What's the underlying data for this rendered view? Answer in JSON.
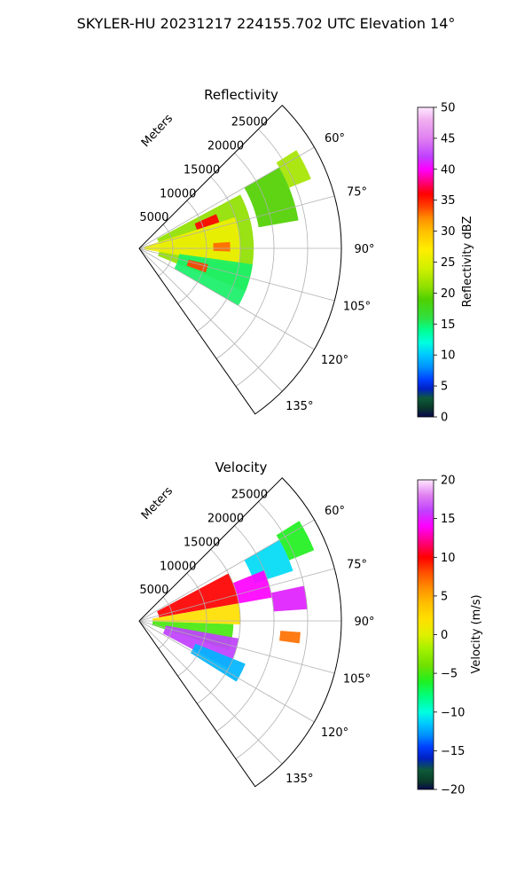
{
  "figure": {
    "suptitle": "SKYLER-HU  20231217  224155.702 UTC Elevation 14°"
  },
  "chart_data": [
    {
      "type": "polar-ppi",
      "title": "Reflectivity",
      "r_label": "Meters",
      "r_ticks": [
        5000,
        10000,
        15000,
        20000,
        25000
      ],
      "r_tick_labels": [
        "5000",
        "10000",
        "15000",
        "20000",
        "25000"
      ],
      "r_max": 30000,
      "theta_min_deg": 45,
      "theta_max_deg": 145,
      "theta_ticks": [
        60,
        75,
        90,
        105,
        120,
        135
      ],
      "theta_tick_labels": [
        "60°",
        "75°",
        "90°",
        "105°",
        "120°",
        "135°"
      ],
      "grid": true,
      "colorbar": {
        "label": "Reflectivity dBZ",
        "min": 0,
        "max": 50,
        "ticks": [
          0,
          5,
          10,
          15,
          20,
          25,
          30,
          35,
          40,
          45,
          50
        ],
        "tick_labels": [
          "0",
          "5",
          "10",
          "15",
          "20",
          "25",
          "30",
          "35",
          "40",
          "45",
          "50"
        ],
        "stops": [
          {
            "v": 0,
            "color": "#08084a"
          },
          {
            "v": 1.5,
            "color": "#0a3a2a"
          },
          {
            "v": 3,
            "color": "#0e5a3a"
          },
          {
            "v": 4.5,
            "color": "#0020c0"
          },
          {
            "v": 6,
            "color": "#0040ff"
          },
          {
            "v": 8,
            "color": "#0090ff"
          },
          {
            "v": 10,
            "color": "#00c8ff"
          },
          {
            "v": 12,
            "color": "#00ffe0"
          },
          {
            "v": 14,
            "color": "#00ff90"
          },
          {
            "v": 16,
            "color": "#30e040"
          },
          {
            "v": 19,
            "color": "#50d000"
          },
          {
            "v": 21,
            "color": "#90e000"
          },
          {
            "v": 24,
            "color": "#d0f000"
          },
          {
            "v": 27,
            "color": "#ffee00"
          },
          {
            "v": 30,
            "color": "#ffc000"
          },
          {
            "v": 32,
            "color": "#ff9000"
          },
          {
            "v": 34,
            "color": "#ff4000"
          },
          {
            "v": 36,
            "color": "#ff0000"
          },
          {
            "v": 38,
            "color": "#ff0080"
          },
          {
            "v": 40,
            "color": "#ff00ff"
          },
          {
            "v": 42,
            "color": "#c040ff"
          },
          {
            "v": 45,
            "color": "#e080f0"
          },
          {
            "v": 48,
            "color": "#f0b0f0"
          },
          {
            "v": 50,
            "color": "#ffe8ff"
          }
        ]
      },
      "echo_regions": [
        {
          "theta": [
            58,
            68
          ],
          "r": [
            24000,
            27500
          ],
          "value": 22
        },
        {
          "theta": [
            60,
            80
          ],
          "r": [
            18000,
            24000
          ],
          "value": 19
        },
        {
          "theta": [
            62,
            112
          ],
          "r": [
            3000,
            17000
          ],
          "value": 21
        },
        {
          "theta": [
            72,
            100
          ],
          "r": [
            800,
            15000
          ],
          "value": 26
        },
        {
          "theta": [
            98,
            120
          ],
          "r": [
            6000,
            17000
          ],
          "value": 15
        },
        {
          "theta": [
            66,
            72
          ],
          "r": [
            9000,
            12500
          ],
          "value": 36
        },
        {
          "theta": [
            86,
            92
          ],
          "r": [
            11000,
            13500
          ],
          "value": 33
        },
        {
          "theta": [
            103,
            110
          ],
          "r": [
            7500,
            10500
          ],
          "value": 34
        }
      ]
    },
    {
      "type": "polar-ppi",
      "title": "Velocity",
      "r_label": "Meters",
      "r_ticks": [
        5000,
        10000,
        15000,
        20000,
        25000
      ],
      "r_tick_labels": [
        "5000",
        "10000",
        "15000",
        "20000",
        "25000"
      ],
      "r_max": 30000,
      "theta_min_deg": 45,
      "theta_max_deg": 145,
      "theta_ticks": [
        60,
        75,
        90,
        105,
        120,
        135
      ],
      "theta_tick_labels": [
        "60°",
        "75°",
        "90°",
        "105°",
        "120°",
        "135°"
      ],
      "grid": true,
      "colorbar": {
        "label": "Velocity (m/s)",
        "min": -20,
        "max": 20,
        "ticks": [
          -20,
          -15,
          -10,
          -5,
          0,
          5,
          10,
          15,
          20
        ],
        "tick_labels": [
          "−20",
          "−15",
          "−10",
          "−5",
          "0",
          "5",
          "10",
          "15",
          "20"
        ],
        "stops": [
          {
            "v": -20,
            "color": "#08084a"
          },
          {
            "v": -19,
            "color": "#0a3a2a"
          },
          {
            "v": -17.5,
            "color": "#0e5a3a"
          },
          {
            "v": -16,
            "color": "#0020c0"
          },
          {
            "v": -14.5,
            "color": "#0040ff"
          },
          {
            "v": -13,
            "color": "#0090ff"
          },
          {
            "v": -11.5,
            "color": "#00c8ff"
          },
          {
            "v": -10,
            "color": "#00ffe0"
          },
          {
            "v": -8,
            "color": "#00ff80"
          },
          {
            "v": -6,
            "color": "#20f020"
          },
          {
            "v": -4,
            "color": "#70e000"
          },
          {
            "v": -2,
            "color": "#a0f000"
          },
          {
            "v": 0,
            "color": "#e0f000"
          },
          {
            "v": 2,
            "color": "#ffe000"
          },
          {
            "v": 4,
            "color": "#ffc000"
          },
          {
            "v": 6,
            "color": "#ff9000"
          },
          {
            "v": 8,
            "color": "#ff5000"
          },
          {
            "v": 10,
            "color": "#ff0000"
          },
          {
            "v": 12,
            "color": "#ff0080"
          },
          {
            "v": 14,
            "color": "#ff00ff"
          },
          {
            "v": 16,
            "color": "#c040ff"
          },
          {
            "v": 18,
            "color": "#e080f0"
          },
          {
            "v": 20,
            "color": "#ffe8ff"
          }
        ]
      },
      "echo_regions": [
        {
          "theta": [
            58,
            68
          ],
          "r": [
            24000,
            28000
          ],
          "value": -6
        },
        {
          "theta": [
            60,
            72
          ],
          "r": [
            18000,
            24000
          ],
          "value": -11
        },
        {
          "theta": [
            68,
            80
          ],
          "r": [
            15000,
            20000
          ],
          "value": 14
        },
        {
          "theta": [
            62,
            80
          ],
          "r": [
            3000,
            15000
          ],
          "value": 10
        },
        {
          "theta": [
            80,
            92
          ],
          "r": [
            2000,
            15000
          ],
          "value": 2
        },
        {
          "theta": [
            92,
            108
          ],
          "r": [
            2000,
            14000
          ],
          "value": -5
        },
        {
          "theta": [
            100,
            118
          ],
          "r": [
            4000,
            15000
          ],
          "value": 16
        },
        {
          "theta": [
            112,
            122
          ],
          "r": [
            9000,
            17000
          ],
          "value": -12
        },
        {
          "theta": [
            78,
            86
          ],
          "r": [
            20000,
            25000
          ],
          "value": 15
        },
        {
          "theta": [
            94,
            98
          ],
          "r": [
            21000,
            24000
          ],
          "value": 7
        }
      ]
    }
  ]
}
